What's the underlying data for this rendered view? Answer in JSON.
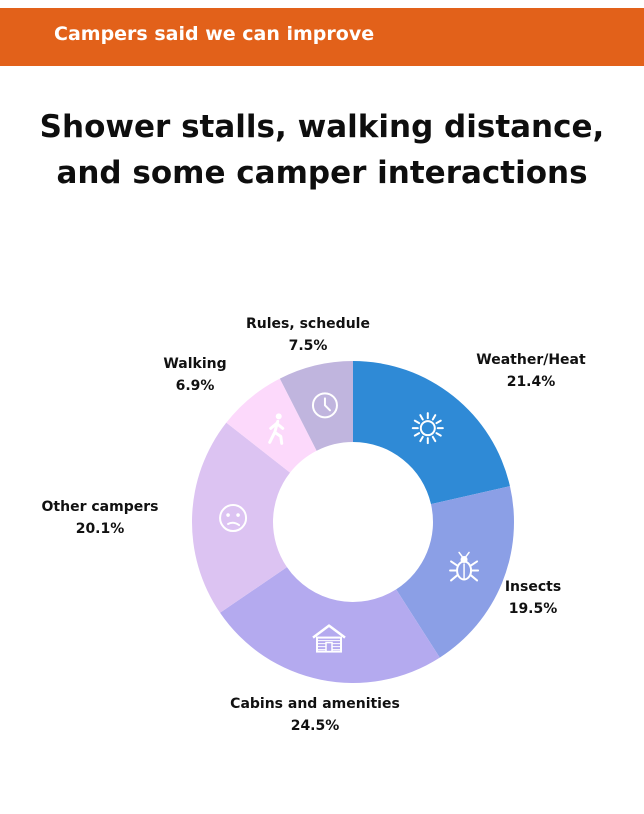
{
  "banner": {
    "text": "Campers said we can improve",
    "color": "#e2611a"
  },
  "headline": {
    "line1": "Shower stalls, walking distance,",
    "line2": "and some camper interactions"
  },
  "chart_data": {
    "type": "pie",
    "style": "donut",
    "title": "",
    "start_angle_deg": 0,
    "direction": "clockwise",
    "slices": [
      {
        "label": "Weather/Heat",
        "value": 21.4,
        "value_label": "21.4%",
        "color": "#2f8ad6",
        "icon": "sun-icon"
      },
      {
        "label": "Insects",
        "value": 19.5,
        "value_label": "19.5%",
        "color": "#8b9fe6",
        "icon": "bug-icon"
      },
      {
        "label": "Cabins and amenities",
        "value": 24.5,
        "value_label": "24.5%",
        "color": "#b4aaef",
        "icon": "cabin-icon"
      },
      {
        "label": "Other campers",
        "value": 20.1,
        "value_label": "20.1%",
        "color": "#dcc3f2",
        "icon": "confused-face-icon"
      },
      {
        "label": "Walking",
        "value": 6.9,
        "value_label": "6.9%",
        "color": "#fcd9fb",
        "icon": "walking-person-icon"
      },
      {
        "label": "Rules, schedule",
        "value": 7.5,
        "value_label": "7.5%",
        "color": "#c0b5de",
        "icon": "clock-icon"
      }
    ]
  }
}
